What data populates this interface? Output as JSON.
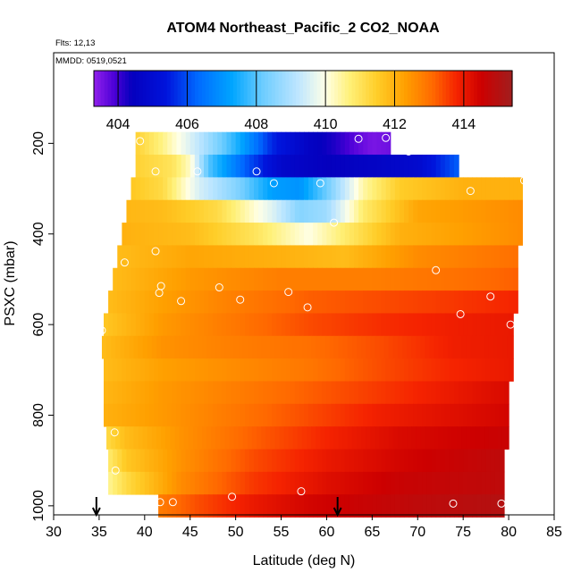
{
  "chart_data": {
    "type": "heatmap",
    "title": "ATOM4 Northeast_Pacific_2 CO2_NOAA",
    "flights_label": "Flts: 12,13",
    "dates_label": "MMDD: 0519,0521",
    "xlabel": "Latitude (deg N)",
    "ylabel": "PSXC (mbar)",
    "xlim": [
      30,
      85
    ],
    "ylim": [
      1020,
      0
    ],
    "x_ticks": [
      "30",
      "35",
      "40",
      "45",
      "50",
      "55",
      "60",
      "65",
      "70",
      "75",
      "80",
      "85"
    ],
    "y_ticks": [
      "200",
      "400",
      "600",
      "800",
      "1000"
    ],
    "colorbar": {
      "range": [
        403.3,
        415.4
      ],
      "ticks": [
        "404",
        "406",
        "408",
        "410",
        "412",
        "414"
      ],
      "tick_values": [
        404,
        406,
        408,
        410,
        412,
        414
      ]
    },
    "flight_markers_lat": [
      34.7,
      61.2
    ],
    "rows": [
      {
        "p": 200,
        "lat_min": 39.0,
        "lat_max": 67.0,
        "anchors": [
          [
            39,
            411.4
          ],
          [
            42,
            410.6
          ],
          [
            46,
            409.2
          ],
          [
            50,
            407.6
          ],
          [
            54,
            405.6
          ],
          [
            58,
            404.6
          ],
          [
            61,
            404.2
          ],
          [
            63,
            403.8
          ],
          [
            65,
            403.5
          ],
          [
            67,
            403.6
          ]
        ]
      },
      {
        "p": 250,
        "lat_min": 39.0,
        "lat_max": 74.5,
        "anchors": [
          [
            39,
            411.4
          ],
          [
            43,
            411.0
          ],
          [
            45,
            410.2
          ],
          [
            47,
            408.0
          ],
          [
            51,
            406.2
          ],
          [
            55,
            404.8
          ],
          [
            60,
            404.4
          ],
          [
            65,
            404.6
          ],
          [
            70,
            404.9
          ],
          [
            74.5,
            406.2
          ]
        ]
      },
      {
        "p": 300,
        "lat_min": 38.5,
        "lat_max": 81.5,
        "anchors": [
          [
            38.5,
            411.6
          ],
          [
            42,
            411.2
          ],
          [
            46,
            409.5
          ],
          [
            50,
            408.5
          ],
          [
            54,
            407.2
          ],
          [
            57,
            407.0
          ],
          [
            60,
            408.2
          ],
          [
            64,
            410.4
          ],
          [
            68,
            411.5
          ],
          [
            75,
            412.0
          ],
          [
            81.5,
            412.0
          ]
        ]
      },
      {
        "p": 350,
        "lat_min": 38.0,
        "lat_max": 81.5,
        "anchors": [
          [
            38,
            411.9
          ],
          [
            42,
            411.8
          ],
          [
            48,
            411.2
          ],
          [
            54,
            409.6
          ],
          [
            57,
            408.5
          ],
          [
            60,
            408.8
          ],
          [
            64,
            410.8
          ],
          [
            70,
            412.2
          ],
          [
            81.5,
            412.6
          ]
        ]
      },
      {
        "p": 400,
        "lat_min": 37.5,
        "lat_max": 81.5,
        "anchors": [
          [
            37.5,
            412.0
          ],
          [
            45,
            411.8
          ],
          [
            52,
            411.0
          ],
          [
            58,
            410.0
          ],
          [
            62,
            410.8
          ],
          [
            68,
            412.0
          ],
          [
            81.5,
            412.6
          ]
        ]
      },
      {
        "p": 450,
        "lat_min": 37.0,
        "lat_max": 81.0,
        "anchors": [
          [
            37,
            411.8
          ],
          [
            45,
            412.2
          ],
          [
            55,
            412.0
          ],
          [
            62,
            411.8
          ],
          [
            70,
            412.6
          ],
          [
            81,
            413.0
          ]
        ]
      },
      {
        "p": 500,
        "lat_min": 36.5,
        "lat_max": 81.0,
        "anchors": [
          [
            36.5,
            411.8
          ],
          [
            45,
            412.4
          ],
          [
            55,
            412.8
          ],
          [
            65,
            412.8
          ],
          [
            75,
            413.0
          ],
          [
            81,
            413.2
          ]
        ]
      },
      {
        "p": 550,
        "lat_min": 36.0,
        "lat_max": 81.0,
        "anchors": [
          [
            36,
            411.8
          ],
          [
            42,
            412.3
          ],
          [
            50,
            412.8
          ],
          [
            58,
            413.2
          ],
          [
            66,
            413.4
          ],
          [
            74,
            413.6
          ],
          [
            81,
            413.8
          ]
        ]
      },
      {
        "p": 600,
        "lat_min": 35.5,
        "lat_max": 80.5,
        "anchors": [
          [
            35.5,
            411.6
          ],
          [
            42,
            412.4
          ],
          [
            50,
            412.9
          ],
          [
            58,
            413.4
          ],
          [
            66,
            413.7
          ],
          [
            74,
            413.9
          ],
          [
            80.5,
            414.0
          ]
        ]
      },
      {
        "p": 650,
        "lat_min": 35.3,
        "lat_max": 80.5,
        "anchors": [
          [
            35.3,
            411.8
          ],
          [
            42,
            412.5
          ],
          [
            50,
            412.8
          ],
          [
            58,
            413.0
          ],
          [
            66,
            413.4
          ],
          [
            74,
            413.9
          ],
          [
            80.5,
            414.0
          ]
        ]
      },
      {
        "p": 700,
        "lat_min": 35.5,
        "lat_max": 80.5,
        "anchors": [
          [
            35.5,
            411.8
          ],
          [
            42,
            412.3
          ],
          [
            50,
            412.6
          ],
          [
            58,
            412.9
          ],
          [
            66,
            413.4
          ],
          [
            74,
            413.8
          ],
          [
            80.5,
            414.0
          ]
        ]
      },
      {
        "p": 750,
        "lat_min": 35.5,
        "lat_max": 80.0,
        "anchors": [
          [
            35.5,
            411.9
          ],
          [
            42,
            412.4
          ],
          [
            50,
            412.8
          ],
          [
            58,
            413.2
          ],
          [
            66,
            413.6
          ],
          [
            74,
            414.0
          ],
          [
            80,
            414.3
          ]
        ]
      },
      {
        "p": 800,
        "lat_min": 35.5,
        "lat_max": 80.0,
        "anchors": [
          [
            35.5,
            412.0
          ],
          [
            42,
            412.4
          ],
          [
            50,
            412.9
          ],
          [
            58,
            413.4
          ],
          [
            66,
            413.9
          ],
          [
            74,
            414.2
          ],
          [
            80,
            414.4
          ]
        ]
      },
      {
        "p": 850,
        "lat_min": 35.8,
        "lat_max": 80.0,
        "anchors": [
          [
            35.8,
            411.2
          ],
          [
            38,
            411.8
          ],
          [
            44,
            412.5
          ],
          [
            52,
            413.2
          ],
          [
            60,
            413.8
          ],
          [
            68,
            414.3
          ],
          [
            80,
            414.6
          ]
        ]
      },
      {
        "p": 900,
        "lat_min": 36.0,
        "lat_max": 79.5,
        "anchors": [
          [
            36,
            410.8
          ],
          [
            38,
            411.6
          ],
          [
            44,
            412.5
          ],
          [
            52,
            413.4
          ],
          [
            60,
            414.0
          ],
          [
            68,
            414.4
          ],
          [
            79.5,
            414.8
          ]
        ]
      },
      {
        "p": 950,
        "lat_min": 36.0,
        "lat_max": 79.5,
        "anchors": [
          [
            36,
            410.5
          ],
          [
            38,
            411.2
          ],
          [
            44,
            412.6
          ],
          [
            52,
            413.6
          ],
          [
            60,
            414.2
          ],
          [
            68,
            414.6
          ],
          [
            79.5,
            414.8
          ]
        ]
      },
      {
        "p": 1000,
        "lat_min": 41.5,
        "lat_max": 79.5,
        "anchors": [
          [
            41.5,
            412.8
          ],
          [
            46,
            413.4
          ],
          [
            52,
            414.0
          ],
          [
            58,
            414.4
          ],
          [
            64,
            414.6
          ],
          [
            70,
            414.8
          ],
          [
            79.5,
            415.0
          ]
        ]
      }
    ],
    "observation_points": [
      [
        39.5,
        195
      ],
      [
        63.5,
        190
      ],
      [
        66.5,
        188
      ],
      [
        69.0,
        218
      ],
      [
        41.2,
        262
      ],
      [
        45.8,
        262
      ],
      [
        52.3,
        262
      ],
      [
        54.2,
        288
      ],
      [
        59.3,
        288
      ],
      [
        75.8,
        305
      ],
      [
        81.7,
        282
      ],
      [
        60.8,
        375
      ],
      [
        37.8,
        463
      ],
      [
        41.2,
        438
      ],
      [
        41.8,
        515
      ],
      [
        41.6,
        530
      ],
      [
        48.2,
        518
      ],
      [
        50.5,
        545
      ],
      [
        44.0,
        548
      ],
      [
        55.8,
        528
      ],
      [
        72.0,
        480
      ],
      [
        57.9,
        562
      ],
      [
        74.7,
        577
      ],
      [
        78.0,
        538
      ],
      [
        80.2,
        600
      ],
      [
        35.3,
        613
      ],
      [
        36.7,
        838
      ],
      [
        36.8,
        922
      ],
      [
        41.7,
        992
      ],
      [
        43.1,
        992
      ],
      [
        49.6,
        980
      ],
      [
        57.2,
        968
      ],
      [
        73.9,
        995
      ],
      [
        79.2,
        995
      ]
    ]
  }
}
